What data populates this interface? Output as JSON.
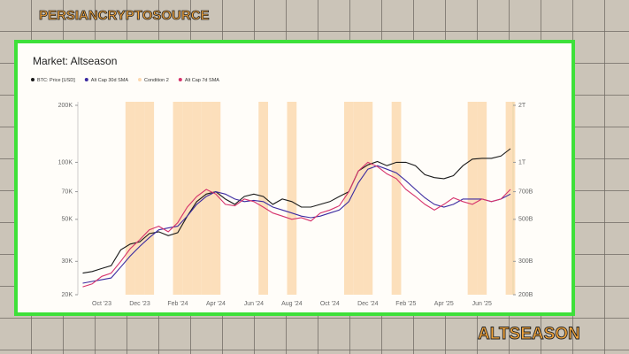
{
  "header": {
    "brand": "PERSIANCRYPTOSOURCE",
    "caption": "ALTSEASON"
  },
  "chart_data": {
    "type": "line",
    "title": "Market: Altseason",
    "ylog": true,
    "categories": [
      null,
      null,
      "Oct '23",
      null,
      null,
      null,
      "Dec '23",
      null,
      null,
      null,
      "Feb '24",
      null,
      null,
      null,
      "Apr '24",
      null,
      null,
      null,
      "Jun '24",
      null,
      null,
      null,
      "Aug '24",
      null,
      null,
      null,
      "Oct '24",
      null,
      null,
      null,
      "Dec '24",
      null,
      null,
      null,
      "Feb '25",
      null,
      null,
      null,
      "Apr '25",
      null,
      null,
      null,
      "Jun '25",
      null,
      null,
      null
    ],
    "series": [
      {
        "name": "BTC: Price [USD]",
        "color": "#1a1a1a",
        "values": [
          26000,
          26500,
          27500,
          28500,
          34500,
          37000,
          38000,
          42000,
          43000,
          41000,
          42500,
          52000,
          62000,
          68000,
          70000,
          64000,
          60000,
          66000,
          68000,
          66000,
          60000,
          64000,
          62000,
          58000,
          58000,
          60000,
          62000,
          66000,
          70000,
          90000,
          97000,
          101000,
          96000,
          100000,
          100000,
          96000,
          86000,
          83000,
          82000,
          85000,
          96000,
          104000,
          105000,
          105000,
          108000,
          118000
        ]
      },
      {
        "name": "Alt Cap 30d SMA",
        "color": "#3b2aa0",
        "axis": "y2",
        "values": [
          230,
          235,
          240,
          245,
          280,
          320,
          360,
          400,
          440,
          450,
          460,
          520,
          600,
          660,
          700,
          680,
          640,
          620,
          630,
          620,
          580,
          560,
          540,
          520,
          510,
          520,
          540,
          560,
          620,
          780,
          920,
          960,
          920,
          880,
          800,
          720,
          650,
          600,
          580,
          600,
          640,
          640,
          640,
          620,
          640,
          680
        ]
      },
      {
        "name": "Condition 2",
        "color": "#fcd9b0",
        "shade": true,
        "values": [
          0,
          0,
          0,
          0,
          0,
          1,
          1,
          1,
          0,
          0,
          1,
          1,
          1,
          1,
          1,
          0,
          0,
          0,
          0,
          1,
          0,
          0,
          1,
          0,
          0,
          0,
          0,
          0,
          1,
          1,
          1,
          0,
          0,
          1,
          0,
          0,
          0,
          0,
          0,
          0,
          0,
          1,
          1,
          0,
          0,
          1
        ]
      },
      {
        "name": "Alt Cap 7d SMA",
        "color": "#d6336c",
        "axis": "y2",
        "values": [
          220,
          228,
          250,
          260,
          300,
          350,
          390,
          440,
          460,
          430,
          480,
          580,
          660,
          720,
          680,
          600,
          590,
          640,
          620,
          580,
          540,
          520,
          500,
          510,
          490,
          540,
          560,
          590,
          700,
          900,
          1000,
          950,
          870,
          820,
          720,
          660,
          600,
          560,
          600,
          650,
          620,
          600,
          640,
          620,
          640,
          720
        ]
      }
    ],
    "ylim": [
      20000,
      200000
    ],
    "yticks": [
      {
        "value": 20000,
        "label": "20K"
      },
      {
        "value": 30000,
        "label": "30K"
      },
      {
        "value": 50000,
        "label": "50K"
      },
      {
        "value": 70000,
        "label": "70K"
      },
      {
        "value": 100000,
        "label": "100K"
      },
      {
        "value": 200000,
        "label": "200K"
      }
    ],
    "y2lim": [
      200,
      2000
    ],
    "y2ticks": [
      {
        "value": 200,
        "label": "200B"
      },
      {
        "value": 300,
        "label": "300B"
      },
      {
        "value": 500,
        "label": "500B"
      },
      {
        "value": 700,
        "label": "700B"
      },
      {
        "value": 1000,
        "label": "1T"
      },
      {
        "value": 2000,
        "label": "2T"
      }
    ]
  }
}
